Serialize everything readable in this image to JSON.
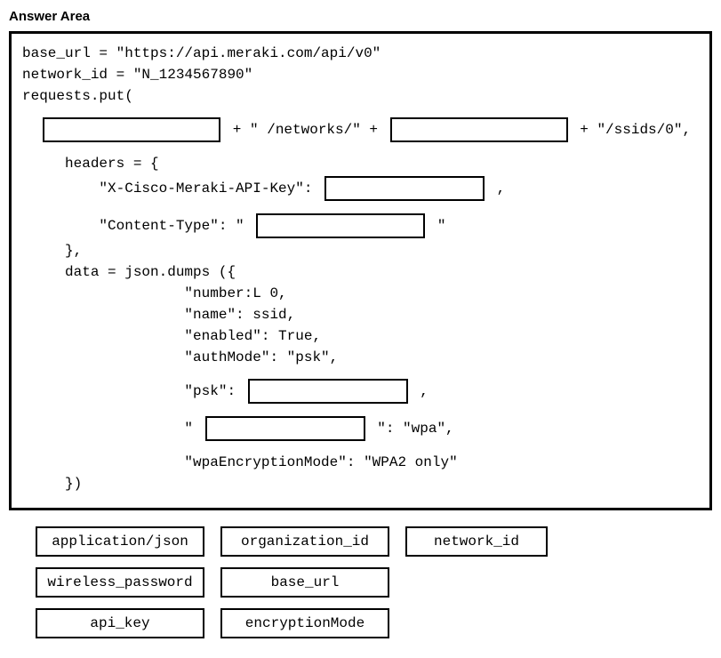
{
  "title": "Answer Area",
  "code": {
    "l1": "base_url = \"https://api.meraki.com/api/v0\"",
    "l2": "network_id = \"N_1234567890\"",
    "l3": "requests.put(",
    "l4a": " + \" /networks/\" + ",
    "l4b": " + \"/ssids/0\",",
    "l5": "     headers = {",
    "l6a": "         \"X-Cisco-Meraki-API-Key\": ",
    "l6b": " ,",
    "l7a": "         \"Content-Type\": \" ",
    "l7b": " \"",
    "l8": "     },",
    "l9": "     data = json.dumps ({",
    "l10": "                   \"number:L 0,",
    "l11": "                   \"name\": ssid,",
    "l12": "                   \"enabled\": True,",
    "l13": "                   \"authMode\": \"psk\",",
    "l14a": "                   \"psk\": ",
    "l14b": " ,",
    "l15a": "                   \" ",
    "l15b": " \": \"wpa\",",
    "l16": "                   \"wpaEncryptionMode\": \"WPA2 only\"",
    "l17": "     })"
  },
  "options": {
    "r1c1": "application/json",
    "r1c2": "organization_id",
    "r1c3": "network_id",
    "r2c1": "wireless_password",
    "r2c2": "base_url",
    "r3c1": "api_key",
    "r3c2": "encryptionMode"
  },
  "styling": {
    "border_color": "#000000",
    "background_color": "#ffffff",
    "code_font": "Courier New",
    "title_font": "Arial",
    "code_fontsize": 16,
    "title_fontsize": 15,
    "blank_border_width": 2,
    "box_border_width": 3
  }
}
